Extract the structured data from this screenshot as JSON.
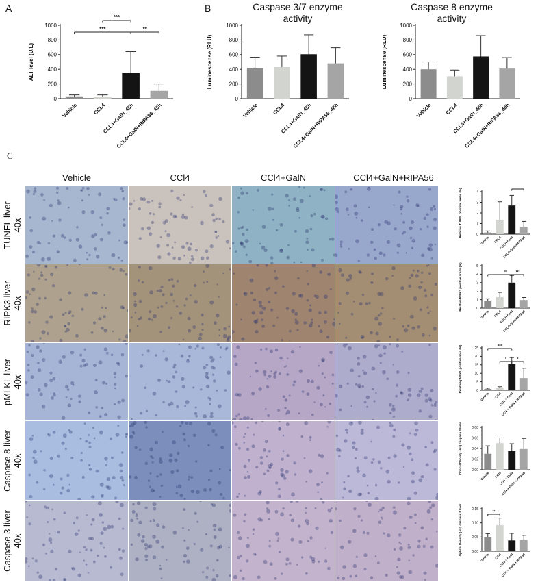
{
  "panels": {
    "A": "A",
    "B": "B",
    "C": "C"
  },
  "chart_data": [
    {
      "id": "alt",
      "type": "bar",
      "title": "",
      "ylabel": "ALT level (U/L)",
      "ylim": [
        0,
        1000
      ],
      "yticks": [
        "0",
        "200",
        "400",
        "600",
        "800",
        "1000"
      ],
      "categories": [
        "Vehicle",
        "CCL4",
        "CCL4+GalN_48h",
        "CCL4+GalN+RIPA56_48h"
      ],
      "values": [
        30,
        25,
        350,
        105
      ],
      "errors": [
        20,
        25,
        290,
        95
      ],
      "colors": [
        "#8c8c8c",
        "#d2d4d0",
        "#141414",
        "#a5a5a5"
      ],
      "significance": [
        {
          "from": 1,
          "to": 2,
          "label": "***"
        },
        {
          "from": 0,
          "to": 2,
          "label": "***"
        },
        {
          "from": 2,
          "to": 3,
          "label": "**"
        }
      ]
    },
    {
      "id": "casp37",
      "type": "bar",
      "title": "Caspase 3/7 enzyme activity",
      "title_lines": [
        "Caspase 3/7 enzyme",
        "activity"
      ],
      "ylabel": "Luminescense (RLU)",
      "ylim": [
        0,
        1000
      ],
      "yticks": [
        "0",
        "200",
        "400",
        "600",
        "800",
        "1000"
      ],
      "categories": [
        "Vehicle",
        "CCL4",
        "CCL4+GalN_48h",
        "CCL4+GalN+RIPA56_48h"
      ],
      "values": [
        420,
        430,
        605,
        480
      ],
      "errors": [
        145,
        150,
        265,
        215
      ],
      "colors": [
        "#8c8c8c",
        "#d2d4d0",
        "#141414",
        "#a5a5a5"
      ],
      "significance": []
    },
    {
      "id": "casp8",
      "type": "bar",
      "title": "Caspase 8 enzyme activity",
      "title_lines": [
        "Caspase 8 enzyme",
        "activity"
      ],
      "ylabel": "Luminescense (RLU)",
      "ylim": [
        0,
        1000
      ],
      "yticks": [
        "0",
        "200",
        "400",
        "600",
        "800",
        "1000"
      ],
      "categories": [
        "Vehicle",
        "CCL4",
        "CCL4+GalN_48h",
        "CCL4+GalN+RIPA56_48h"
      ],
      "values": [
        400,
        305,
        575,
        410
      ],
      "errors": [
        100,
        85,
        285,
        150
      ],
      "colors": [
        "#8c8c8c",
        "#d2d4d0",
        "#141414",
        "#a5a5a5"
      ],
      "significance": []
    },
    {
      "id": "tunel",
      "type": "bar",
      "title": "",
      "ylabel": "Relative TUNEL positive areas (%)",
      "ylim": [
        0,
        4
      ],
      "yticks": [
        "0",
        "1",
        "2",
        "3",
        "4"
      ],
      "categories": [
        "Vehicle",
        "CCL4",
        "CCL4+GalN",
        "CCL4+GalN+RIPA56"
      ],
      "values": [
        0.15,
        1.35,
        2.7,
        0.7
      ],
      "errors": [
        0.15,
        1.7,
        0.95,
        0.5
      ],
      "colors": [
        "#8c8c8c",
        "#d2d4d0",
        "#141414",
        "#a5a5a5"
      ],
      "significance": [
        {
          "from": 2,
          "to": 3,
          "label": "***"
        }
      ]
    },
    {
      "id": "ripk3",
      "type": "bar",
      "title": "",
      "ylabel": "Relative RIPK3 positive areas (%)",
      "ylim": [
        0,
        5
      ],
      "yticks": [
        "0",
        "1",
        "2",
        "3",
        "4",
        "5"
      ],
      "categories": [
        "Vehicle",
        "CCL4",
        "CCL4+GalN",
        "CCL4+GalN+RIPA56"
      ],
      "values": [
        0.85,
        1.3,
        3.0,
        0.95
      ],
      "errors": [
        0.25,
        0.55,
        0.85,
        0.3
      ],
      "colors": [
        "#8c8c8c",
        "#d2d4d0",
        "#141414",
        "#a5a5a5"
      ],
      "significance": [
        {
          "from": 0,
          "to": 3,
          "label": "**"
        },
        {
          "from": 2,
          "to": 3,
          "label": "***"
        }
      ]
    },
    {
      "id": "pmlkl",
      "type": "bar",
      "title": "",
      "ylabel": "Relative pMLKL positive area (%)",
      "ylim": [
        0,
        25
      ],
      "yticks": [
        "0",
        "5",
        "10",
        "15",
        "20",
        "25"
      ],
      "categories": [
        "Vehicle",
        "CCl4",
        "CCl4 + GalN",
        "CCl4 + GalN + RIPA56"
      ],
      "values": [
        0.8,
        1.6,
        15.5,
        7.2
      ],
      "errors": [
        0.5,
        0.5,
        3.8,
        5.8
      ],
      "colors": [
        "#8c8c8c",
        "#d2d4d0",
        "#141414",
        "#a5a5a5"
      ],
      "significance": [
        {
          "from": 0,
          "to": 2,
          "label": "***"
        },
        {
          "from": 1,
          "to": 2,
          "label": "*"
        },
        {
          "from": 2,
          "to": 3,
          "label": "*"
        }
      ]
    },
    {
      "id": "casp8liver",
      "type": "bar",
      "title": "",
      "ylabel": "Optical Density (AU) caspase 3 liver",
      "ylim": [
        0,
        0.08
      ],
      "yticks": [
        "0.00",
        "0.02",
        "0.04",
        "0.06",
        "0.08"
      ],
      "categories": [
        "Vehicle",
        "CCl4",
        "CCl4 + GalN",
        "CCl4 + GalN + RIPA56"
      ],
      "values": [
        0.03,
        0.05,
        0.035,
        0.039
      ],
      "errors": [
        0.015,
        0.01,
        0.014,
        0.02
      ],
      "colors": [
        "#8c8c8c",
        "#d2d4d0",
        "#141414",
        "#a5a5a5"
      ],
      "significance": []
    },
    {
      "id": "casp3liver",
      "type": "bar",
      "title": "",
      "ylabel": "Optical Density (AU) caspase 8 liver",
      "ylim": [
        0,
        0.15
      ],
      "yticks": [
        "0.00",
        "0.05",
        "0.10",
        "0.15"
      ],
      "categories": [
        "Vehicle",
        "CCl4",
        "CCl4 + GalN",
        "CCl4 + GalN + RIPA56"
      ],
      "values": [
        0.05,
        0.092,
        0.038,
        0.04
      ],
      "errors": [
        0.012,
        0.025,
        0.025,
        0.016
      ],
      "colors": [
        "#8c8c8c",
        "#d2d4d0",
        "#141414",
        "#a5a5a5"
      ],
      "significance": [
        {
          "from": 0,
          "to": 1,
          "label": "**"
        }
      ]
    }
  ],
  "micrographs": {
    "columns": [
      "Vehicle",
      "CCl4",
      "CCl4+GalN",
      "CCl4+GalN+RIPA56"
    ],
    "rows": [
      {
        "label": "TUNEL liver",
        "mag": "40x",
        "tints": [
          "#a7b7cf",
          "#c9c2bd",
          "#8fb3c4",
          "#98a8cc"
        ]
      },
      {
        "label": "RIPK3 liver",
        "mag": "40x",
        "tints": [
          "#aea28e",
          "#a4937b",
          "#9f8570",
          "#a48e73"
        ]
      },
      {
        "label": "pMLKL liver",
        "mag": "40x",
        "tints": [
          "#a6b5d6",
          "#a9b7d8",
          "#b6a7c6",
          "#aeaccc"
        ]
      },
      {
        "label": "Caspase 8 liver",
        "mag": "40x",
        "tints": [
          "#a8bde0",
          "#7c8fbc",
          "#c0b2cf",
          "#bcb8d8"
        ]
      },
      {
        "label": "Caspase 3 liver",
        "mag": "40x",
        "tints": [
          "#b8bad2",
          "#aeb1c3",
          "#c3b3cc",
          "#c1b0c9"
        ]
      }
    ]
  }
}
